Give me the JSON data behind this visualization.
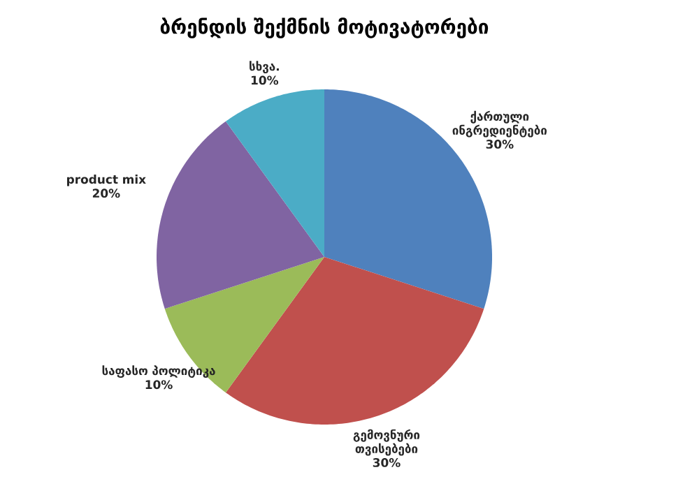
{
  "chart_data": {
    "type": "pie",
    "title": "ბრენდის შექმნის მოტივატორები",
    "categories": [
      "ქართული ინგრედიენტები",
      "გემოვნური თვისებები",
      "საფასო პოლიტიკა",
      "product mix",
      "სხვა."
    ],
    "values": [
      30,
      30,
      10,
      20,
      10
    ],
    "colors": [
      "#4f81bd",
      "#c0504d",
      "#9bbb59",
      "#8064a2",
      "#4bacc6"
    ],
    "value_labels": [
      "30%",
      "30%",
      "10%",
      "20%",
      "10%"
    ]
  }
}
